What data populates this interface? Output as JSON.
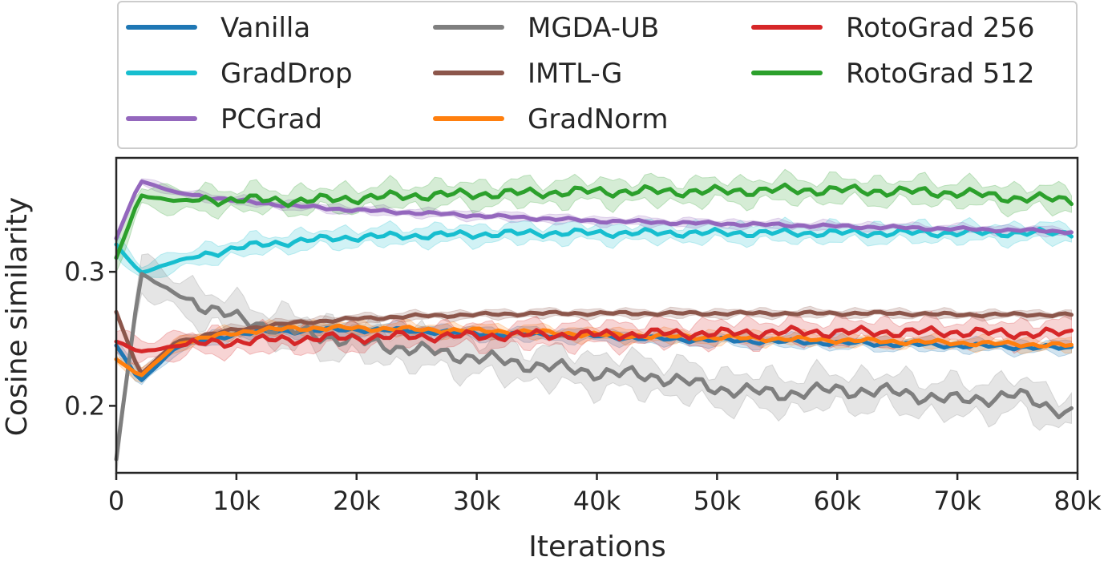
{
  "chart_data": {
    "type": "line",
    "title": "",
    "xlabel": "Iterations",
    "ylabel": "Cosine similarity",
    "xlim": [
      0,
      80000
    ],
    "ylim": [
      0.15,
      0.385
    ],
    "xticks": [
      {
        "value": 0,
        "label": "0"
      },
      {
        "value": 10000,
        "label": "10k"
      },
      {
        "value": 20000,
        "label": "20k"
      },
      {
        "value": 30000,
        "label": "30k"
      },
      {
        "value": 40000,
        "label": "40k"
      },
      {
        "value": 50000,
        "label": "50k"
      },
      {
        "value": 60000,
        "label": "60k"
      },
      {
        "value": 70000,
        "label": "70k"
      },
      {
        "value": 80000,
        "label": "80k"
      }
    ],
    "yticks": [
      {
        "value": 0.2,
        "label": "0.2"
      },
      {
        "value": 0.3,
        "label": "0.3"
      }
    ],
    "grid": false,
    "legend_position": "top",
    "x": [
      0,
      2000,
      5000,
      10000,
      15000,
      20000,
      25000,
      30000,
      35000,
      40000,
      45000,
      50000,
      55000,
      60000,
      65000,
      70000,
      75000,
      79500
    ],
    "series": [
      {
        "name": "Vanilla",
        "color": "#1f77b4",
        "values": [
          0.245,
          0.218,
          0.244,
          0.254,
          0.256,
          0.257,
          0.256,
          0.254,
          0.253,
          0.252,
          0.25,
          0.249,
          0.248,
          0.247,
          0.246,
          0.245,
          0.244,
          0.243
        ],
        "band": 0.006
      },
      {
        "name": "GradDrop",
        "color": "#17becf",
        "values": [
          0.32,
          0.299,
          0.308,
          0.318,
          0.323,
          0.326,
          0.327,
          0.328,
          0.329,
          0.329,
          0.329,
          0.329,
          0.329,
          0.329,
          0.329,
          0.329,
          0.329,
          0.329
        ],
        "band": 0.009
      },
      {
        "name": "PCGrad",
        "color": "#9467bd",
        "values": [
          0.325,
          0.368,
          0.359,
          0.353,
          0.349,
          0.346,
          0.344,
          0.342,
          0.34,
          0.338,
          0.337,
          0.336,
          0.335,
          0.334,
          0.333,
          0.332,
          0.331,
          0.33
        ],
        "band": 0.004
      },
      {
        "name": "MGDA-UB",
        "color": "#7f7f7f",
        "values": [
          0.16,
          0.299,
          0.283,
          0.265,
          0.255,
          0.248,
          0.242,
          0.236,
          0.23,
          0.225,
          0.222,
          0.213,
          0.209,
          0.212,
          0.21,
          0.204,
          0.208,
          0.194
        ],
        "band": 0.018
      },
      {
        "name": "IMTL-G",
        "color": "#8c564b",
        "values": [
          0.27,
          0.223,
          0.248,
          0.257,
          0.262,
          0.265,
          0.267,
          0.268,
          0.269,
          0.269,
          0.269,
          0.269,
          0.269,
          0.269,
          0.269,
          0.268,
          0.268,
          0.268
        ],
        "band": 0.004
      },
      {
        "name": "GradNorm",
        "color": "#ff7f0e",
        "values": [
          0.235,
          0.222,
          0.246,
          0.255,
          0.258,
          0.258,
          0.257,
          0.256,
          0.255,
          0.253,
          0.252,
          0.251,
          0.25,
          0.249,
          0.248,
          0.247,
          0.246,
          0.245
        ],
        "band": 0.006
      },
      {
        "name": "RotoGrad 256",
        "color": "#d62728",
        "values": [
          0.248,
          0.24,
          0.245,
          0.248,
          0.25,
          0.251,
          0.252,
          0.252,
          0.253,
          0.253,
          0.254,
          0.254,
          0.255,
          0.255,
          0.255,
          0.255,
          0.254,
          0.254
        ],
        "band": 0.012
      },
      {
        "name": "RotoGrad 512",
        "color": "#2ca02c",
        "values": [
          0.31,
          0.357,
          0.353,
          0.354,
          0.353,
          0.355,
          0.357,
          0.358,
          0.359,
          0.36,
          0.36,
          0.36,
          0.361,
          0.361,
          0.36,
          0.359,
          0.355,
          0.354
        ],
        "band": 0.012
      }
    ]
  }
}
